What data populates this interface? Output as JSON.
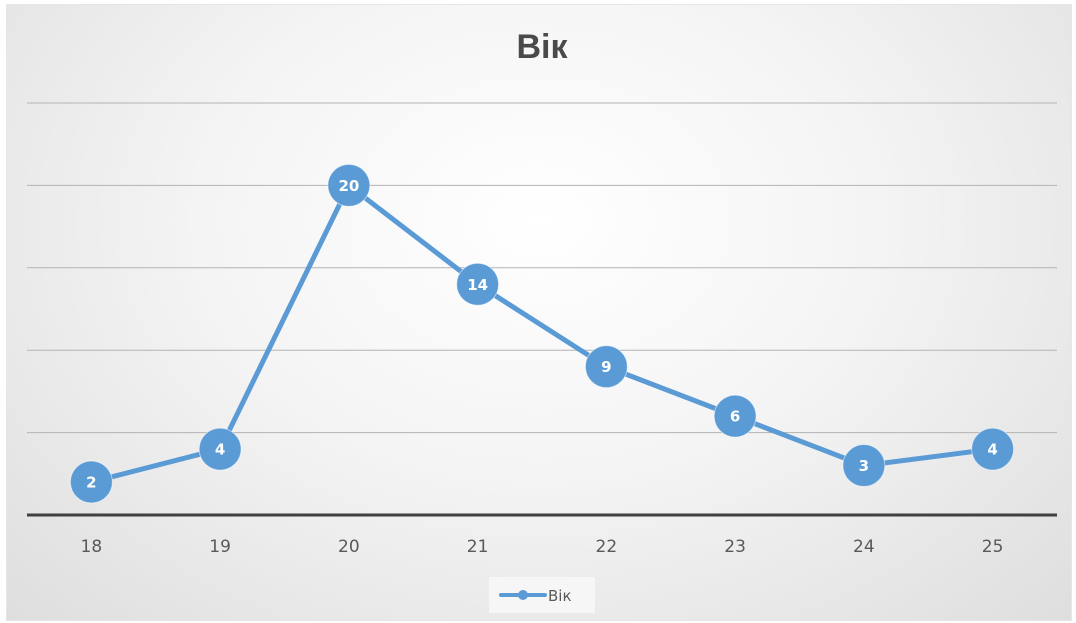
{
  "chart_data": {
    "type": "line",
    "title": "Вік",
    "categories": [
      "18",
      "19",
      "20",
      "21",
      "22",
      "23",
      "24",
      "25"
    ],
    "series": [
      {
        "name": "Вік",
        "values": [
          2,
          4,
          20,
          14,
          9,
          6,
          3,
          4
        ]
      }
    ],
    "xlabel": "",
    "ylabel": "",
    "ylim": [
      0,
      25
    ],
    "grid": true,
    "legend": "bottom",
    "data_labels": true,
    "colors": {
      "series": "#5b9bd5",
      "grid": "#b3b3b3",
      "axis": "#404040",
      "background": "#f2f2f2"
    }
  }
}
